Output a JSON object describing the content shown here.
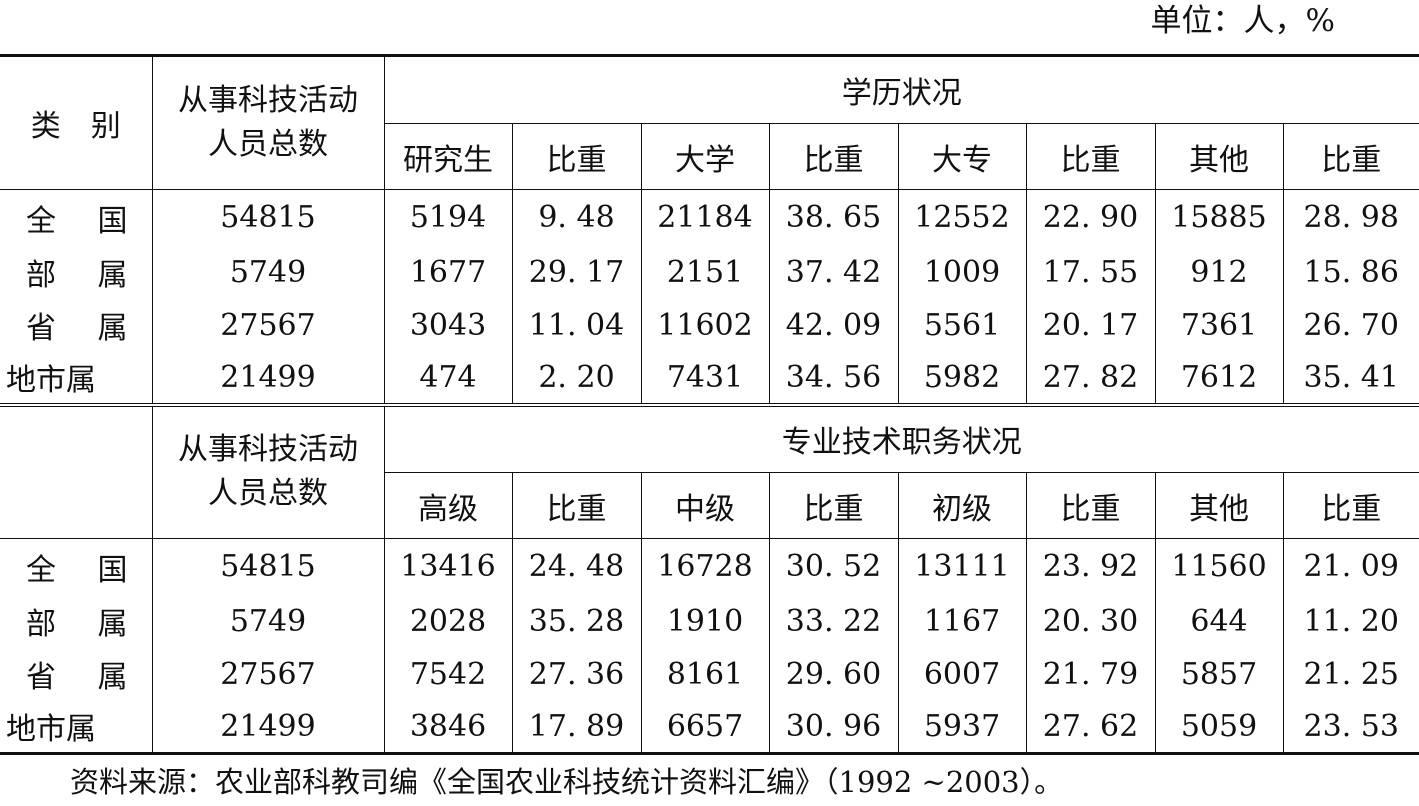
{
  "unit_label": "单位：人，%",
  "header": {
    "category": "类　别",
    "total_line1": "从事科技活动",
    "total_line2": "人员总数",
    "edu_group": "学历状况",
    "edu_cols": [
      "研究生",
      "比重",
      "大学",
      "比重",
      "大专",
      "比重",
      "其他",
      "比重"
    ],
    "title_group": "专业技术职务状况",
    "title_cols": [
      "高级",
      "比重",
      "中级",
      "比重",
      "初级",
      "比重",
      "其他",
      "比重"
    ]
  },
  "edu_rows": [
    {
      "cat": [
        "全",
        "国"
      ],
      "values": [
        "54815",
        "5194",
        "9. 48",
        "21184",
        "38. 65",
        "12552",
        "22. 90",
        "15885",
        "28. 98"
      ]
    },
    {
      "cat": [
        "部",
        "属"
      ],
      "values": [
        "5749",
        "1677",
        "29. 17",
        "2151",
        "37. 42",
        "1009",
        "17. 55",
        "912",
        "15. 86"
      ]
    },
    {
      "cat": [
        "省",
        "属"
      ],
      "values": [
        "27567",
        "3043",
        "11. 04",
        "11602",
        "42. 09",
        "5561",
        "20. 17",
        "7361",
        "26. 70"
      ]
    },
    {
      "cat": [
        "地市属"
      ],
      "values": [
        "21499",
        "474",
        "2. 20",
        "7431",
        "34. 56",
        "5982",
        "27. 82",
        "7612",
        "35. 41"
      ]
    }
  ],
  "title_rows": [
    {
      "cat": [
        "全",
        "国"
      ],
      "values": [
        "54815",
        "13416",
        "24. 48",
        "16728",
        "30. 52",
        "13111",
        "23. 92",
        "11560",
        "21. 09"
      ]
    },
    {
      "cat": [
        "部",
        "属"
      ],
      "values": [
        "5749",
        "2028",
        "35. 28",
        "1910",
        "33. 22",
        "1167",
        "20. 30",
        "644",
        "11. 20"
      ]
    },
    {
      "cat": [
        "省",
        "属"
      ],
      "values": [
        "27567",
        "7542",
        "27. 36",
        "8161",
        "29. 60",
        "6007",
        "21. 79",
        "5857",
        "21. 25"
      ]
    },
    {
      "cat": [
        "地市属"
      ],
      "values": [
        "21499",
        "3846",
        "17. 89",
        "6657",
        "30. 96",
        "5937",
        "27. 62",
        "5059",
        "23. 53"
      ]
    }
  ],
  "source": "资料来源：农业部科教司编《全国农业科技统计资料汇编》（1992 ~2003）。"
}
